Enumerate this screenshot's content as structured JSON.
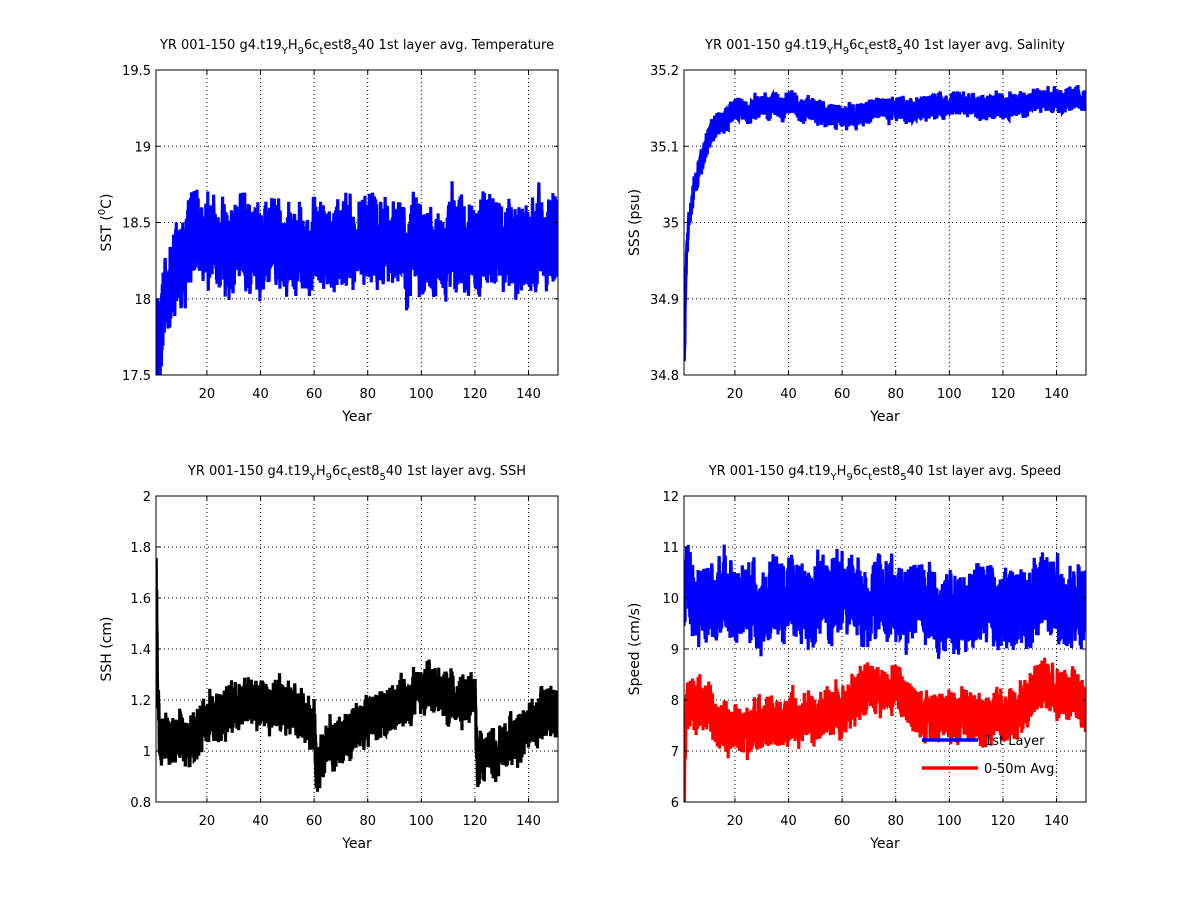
{
  "figure": {
    "background": "#ffffff",
    "charts": [
      "temperature",
      "salinity",
      "ssh",
      "speed"
    ]
  },
  "chart_data": [
    {
      "id": "temperature",
      "type": "line",
      "title": {
        "pre": "YR 001-150  g4.t19",
        "s1": "Y",
        "m1": "H",
        "s2": "9",
        "m2": "6c",
        "s3": "t",
        "m3": "est8",
        "s4": "5",
        "post": "40 1st layer avg. Temperature"
      },
      "xlabel": "Year",
      "ylabel": {
        "pre": "SST (",
        "sup": "0",
        "post": "C)"
      },
      "xlim": [
        1,
        151
      ],
      "ylim": [
        17.5,
        19.5
      ],
      "xticks": [
        20,
        40,
        60,
        80,
        100,
        120,
        140
      ],
      "yticks": [
        17.5,
        18,
        18.5,
        19,
        19.5
      ],
      "grid": true,
      "series": [
        {
          "color": "#0000ff",
          "model": {
            "base": 18.35,
            "trend": [
              [
                1,
                -0.55
              ],
              [
                4,
                -0.4
              ],
              [
                8,
                -0.2
              ],
              [
                14,
                0
              ]
            ],
            "osc": 0.22,
            "noise": 0.1,
            "seed": 11
          }
        }
      ]
    },
    {
      "id": "salinity",
      "type": "line",
      "title": {
        "pre": "YR 001-150  g4.t19",
        "s1": "Y",
        "m1": "H",
        "s2": "9",
        "m2": "6c",
        "s3": "t",
        "m3": "est8",
        "s4": "5",
        "post": "40 1st layer avg. Salinity"
      },
      "xlabel": "Year",
      "ylabel": {
        "pre": "SSS (psu)",
        "sup": "",
        "post": ""
      },
      "xlim": [
        1,
        151
      ],
      "ylim": [
        34.8,
        35.2
      ],
      "xticks": [
        20,
        40,
        60,
        80,
        100,
        120,
        140
      ],
      "yticks": [
        34.8,
        34.9,
        35,
        35.1,
        35.2
      ],
      "grid": true,
      "series": [
        {
          "color": "#0000ff",
          "model": {
            "base": 35.15,
            "trend": [
              [
                1,
                -0.34
              ],
              [
                2,
                -0.18
              ],
              [
                3,
                -0.14
              ],
              [
                5,
                -0.1
              ],
              [
                8,
                -0.06
              ],
              [
                12,
                -0.025
              ],
              [
                20,
                -0.005
              ],
              [
                40,
                0.005
              ],
              [
                60,
                -0.01
              ],
              [
                80,
                0
              ],
              [
                120,
                0.005
              ],
              [
                151,
                0.012
              ]
            ],
            "osc": 0.012,
            "noise": 0.006,
            "seed": 23
          }
        }
      ]
    },
    {
      "id": "ssh",
      "type": "line",
      "title": {
        "pre": "YR 001-150  g4.t19",
        "s1": "Y",
        "m1": "H",
        "s2": "9",
        "m2": "6c",
        "s3": "t",
        "m3": "est8",
        "s4": "5",
        "post": "40 1st layer avg. SSH"
      },
      "xlabel": "Year",
      "ylabel": {
        "pre": "SSH (cm)",
        "sup": "",
        "post": ""
      },
      "xlim": [
        1,
        151
      ],
      "ylim": [
        0.8,
        2.0
      ],
      "xticks": [
        20,
        40,
        60,
        80,
        100,
        120,
        140
      ],
      "yticks": [
        0.8,
        1,
        1.2,
        1.4,
        1.6,
        1.8,
        2
      ],
      "grid": true,
      "series": [
        {
          "color": "#000000",
          "model": {
            "base": 1.0,
            "trend": [
              [
                1,
                0.8
              ],
              [
                1.6,
                0.25
              ],
              [
                2.5,
                0.05
              ],
              [
                10,
                0.05
              ],
              [
                30,
                0.17
              ],
              [
                50,
                0.18
              ],
              [
                60,
                0.12
              ],
              [
                61,
                -0.05
              ],
              [
                65,
                0.0
              ],
              [
                80,
                0.12
              ],
              [
                100,
                0.22
              ],
              [
                120,
                0.2
              ],
              [
                121,
                -0.05
              ],
              [
                130,
                0.02
              ],
              [
                151,
                0.18
              ]
            ],
            "osc": 0.07,
            "noise": 0.04,
            "seed": 37
          }
        }
      ]
    },
    {
      "id": "speed",
      "type": "line",
      "title": {
        "pre": "YR 001-150  g4.t19",
        "s1": "Y",
        "m1": "H",
        "s2": "9",
        "m2": "6c",
        "s3": "t",
        "m3": "est8",
        "s4": "5",
        "post": "40 1st layer avg. Speed"
      },
      "xlabel": "Year",
      "ylabel": {
        "pre": "Speed (cm/s)",
        "sup": "",
        "post": ""
      },
      "xlim": [
        1,
        151
      ],
      "ylim": [
        6,
        12
      ],
      "xticks": [
        20,
        40,
        60,
        80,
        100,
        120,
        140
      ],
      "yticks": [
        6,
        7,
        8,
        9,
        10,
        11,
        12
      ],
      "grid": true,
      "legend_position": "bottom-right",
      "series": [
        {
          "name": "1st Layer",
          "color": "#0000ff",
          "model": {
            "base": 9.9,
            "trend": [
              [
                1,
                0.3
              ],
              [
                10,
                0
              ],
              [
                60,
                0.1
              ],
              [
                80,
                0.1
              ],
              [
                100,
                -0.2
              ],
              [
                151,
                0
              ]
            ],
            "osc": 0.55,
            "noise": 0.3,
            "seed": 41
          }
        },
        {
          "name": "0-50m Avg.",
          "color": "#ff0000",
          "model": {
            "base": 7.7,
            "trend": [
              [
                1,
                -1.6
              ],
              [
                1.8,
                0.3
              ],
              [
                5,
                0.2
              ],
              [
                20,
                -0.3
              ],
              [
                45,
                -0.1
              ],
              [
                62,
                0.2
              ],
              [
                70,
                0.6
              ],
              [
                80,
                0.4
              ],
              [
                90,
                0.1
              ],
              [
                110,
                -0.1
              ],
              [
                125,
                0.1
              ],
              [
                135,
                0.6
              ],
              [
                150,
                0.2
              ],
              [
                151,
                0
              ]
            ],
            "osc": 0.35,
            "noise": 0.2,
            "seed": 53
          }
        }
      ]
    }
  ]
}
